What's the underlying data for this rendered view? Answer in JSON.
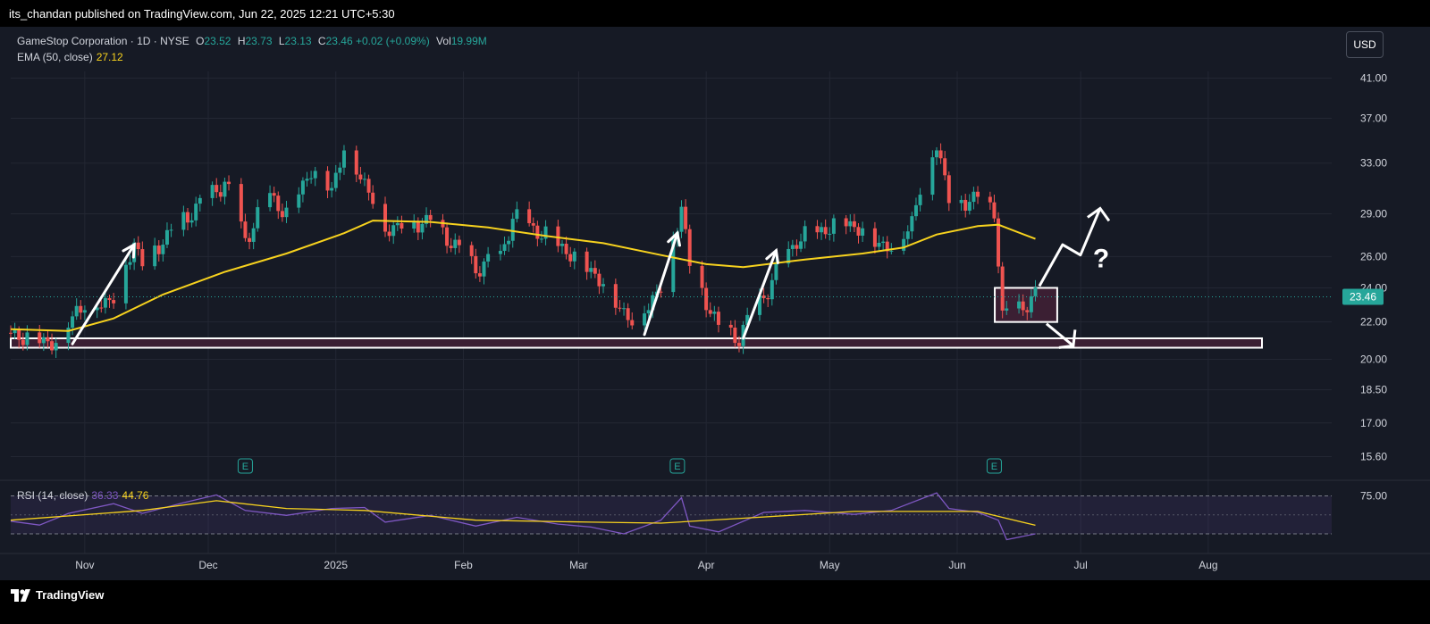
{
  "header": {
    "publish_line": "its_chandan published on TradingView.com, Jun 22, 2025 12:21 UTC+5:30"
  },
  "legend": {
    "symbol": "GameStop Corporation · 1D · NYSE",
    "open_label": "O",
    "open": "23.52",
    "high_label": "H",
    "high": "23.73",
    "low_label": "L",
    "low": "23.13",
    "close_label": "C",
    "close": "23.46",
    "change": "+0.02 (+0.09%)",
    "vol_label": "Vol",
    "vol": "19.99M",
    "ema_label": "EMA (50, close)",
    "ema_value": "27.12"
  },
  "rsi_legend": {
    "label": "RSI (14, close)",
    "value1": "36.33",
    "value2": "44.76"
  },
  "currency_button": "USD",
  "footer": {
    "brand": "TradingView"
  },
  "colors": {
    "up": "#26a69a",
    "down": "#ef5350",
    "ema": "#f7d21e",
    "rsi": "#7e57c2",
    "rsi_ma": "#f7d21e",
    "background": "#161a25",
    "price_tag": "#26a69a",
    "zone_fill": "#3b1f33"
  },
  "icons": {
    "earnings": "earnings-e-icon",
    "logo": "tradingview-logo-icon"
  },
  "chart_data": {
    "type": "candlestick",
    "price_axis": {
      "ticks": [
        41.0,
        37.0,
        33.0,
        29.0,
        26.0,
        24.0,
        22.0,
        20.0,
        18.5,
        17.0,
        15.6
      ],
      "scale": "log",
      "last_price": "23.46"
    },
    "time_axis": {
      "labels": [
        "Nov",
        "Dec",
        "2025",
        "Feb",
        "Mar",
        "Apr",
        "May",
        "Jun",
        "Jul",
        "Aug"
      ],
      "start": "2024-10-14",
      "end": "2025-08-31"
    },
    "ohlc_source": "approximated daily candles traced from the chart",
    "ema_50": [
      [
        "2024-10-14",
        21.6
      ],
      [
        "2024-10-28",
        21.5
      ],
      [
        "2024-11-08",
        22.2
      ],
      [
        "2024-11-20",
        23.6
      ],
      [
        "2024-12-05",
        25.0
      ],
      [
        "2024-12-20",
        26.2
      ],
      [
        "2025-01-03",
        27.6
      ],
      [
        "2025-01-10",
        28.5
      ],
      [
        "2025-01-24",
        28.4
      ],
      [
        "2025-02-07",
        28.0
      ],
      [
        "2025-02-21",
        27.4
      ],
      [
        "2025-03-07",
        26.9
      ],
      [
        "2025-03-21",
        26.1
      ],
      [
        "2025-04-01",
        25.5
      ],
      [
        "2025-04-10",
        25.3
      ],
      [
        "2025-04-25",
        25.8
      ],
      [
        "2025-05-09",
        26.2
      ],
      [
        "2025-05-19",
        26.6
      ],
      [
        "2025-05-27",
        27.5
      ],
      [
        "2025-06-06",
        28.1
      ],
      [
        "2025-06-11",
        28.2
      ],
      [
        "2025-06-20",
        27.2
      ]
    ],
    "rsi": {
      "upper_band": 75.0,
      "points": [
        [
          "2024-10-14",
          49
        ],
        [
          "2024-10-21",
          45
        ],
        [
          "2024-10-28",
          57
        ],
        [
          "2024-11-08",
          67
        ],
        [
          "2024-11-15",
          57
        ],
        [
          "2024-11-25",
          68
        ],
        [
          "2024-12-03",
          76
        ],
        [
          "2024-12-10",
          60
        ],
        [
          "2024-12-20",
          55
        ],
        [
          "2024-12-31",
          62
        ],
        [
          "2025-01-08",
          63
        ],
        [
          "2025-01-13",
          48
        ],
        [
          "2025-01-24",
          55
        ],
        [
          "2025-02-04",
          44
        ],
        [
          "2025-02-14",
          53
        ],
        [
          "2025-02-24",
          46
        ],
        [
          "2025-03-04",
          43
        ],
        [
          "2025-03-12",
          36
        ],
        [
          "2025-03-21",
          50
        ],
        [
          "2025-03-26",
          73
        ],
        [
          "2025-03-28",
          44
        ],
        [
          "2025-04-04",
          38
        ],
        [
          "2025-04-15",
          58
        ],
        [
          "2025-04-25",
          60
        ],
        [
          "2025-05-07",
          56
        ],
        [
          "2025-05-16",
          60
        ],
        [
          "2025-05-27",
          78
        ],
        [
          "2025-05-30",
          62
        ],
        [
          "2025-06-06",
          58
        ],
        [
          "2025-06-11",
          50
        ],
        [
          "2025-06-13",
          30
        ],
        [
          "2025-06-20",
          36
        ]
      ],
      "ma": [
        [
          "2024-10-14",
          50
        ],
        [
          "2024-11-15",
          60
        ],
        [
          "2024-12-03",
          70
        ],
        [
          "2024-12-20",
          62
        ],
        [
          "2025-01-08",
          60
        ],
        [
          "2025-02-04",
          50
        ],
        [
          "2025-03-04",
          48
        ],
        [
          "2025-03-21",
          47
        ],
        [
          "2025-04-10",
          52
        ],
        [
          "2025-05-07",
          59
        ],
        [
          "2025-06-06",
          59
        ],
        [
          "2025-06-20",
          44.76
        ]
      ]
    },
    "earnings_markers": [
      "2024-12-10",
      "2025-03-25",
      "2025-06-10"
    ],
    "annotations": {
      "support_zone": [
        20.6,
        21.1
      ],
      "consolidation_box": {
        "from": "2025-06-11",
        "to": "2025-06-24",
        "low": 22.0,
        "high": 24.0
      },
      "scenario_text": "?"
    }
  }
}
